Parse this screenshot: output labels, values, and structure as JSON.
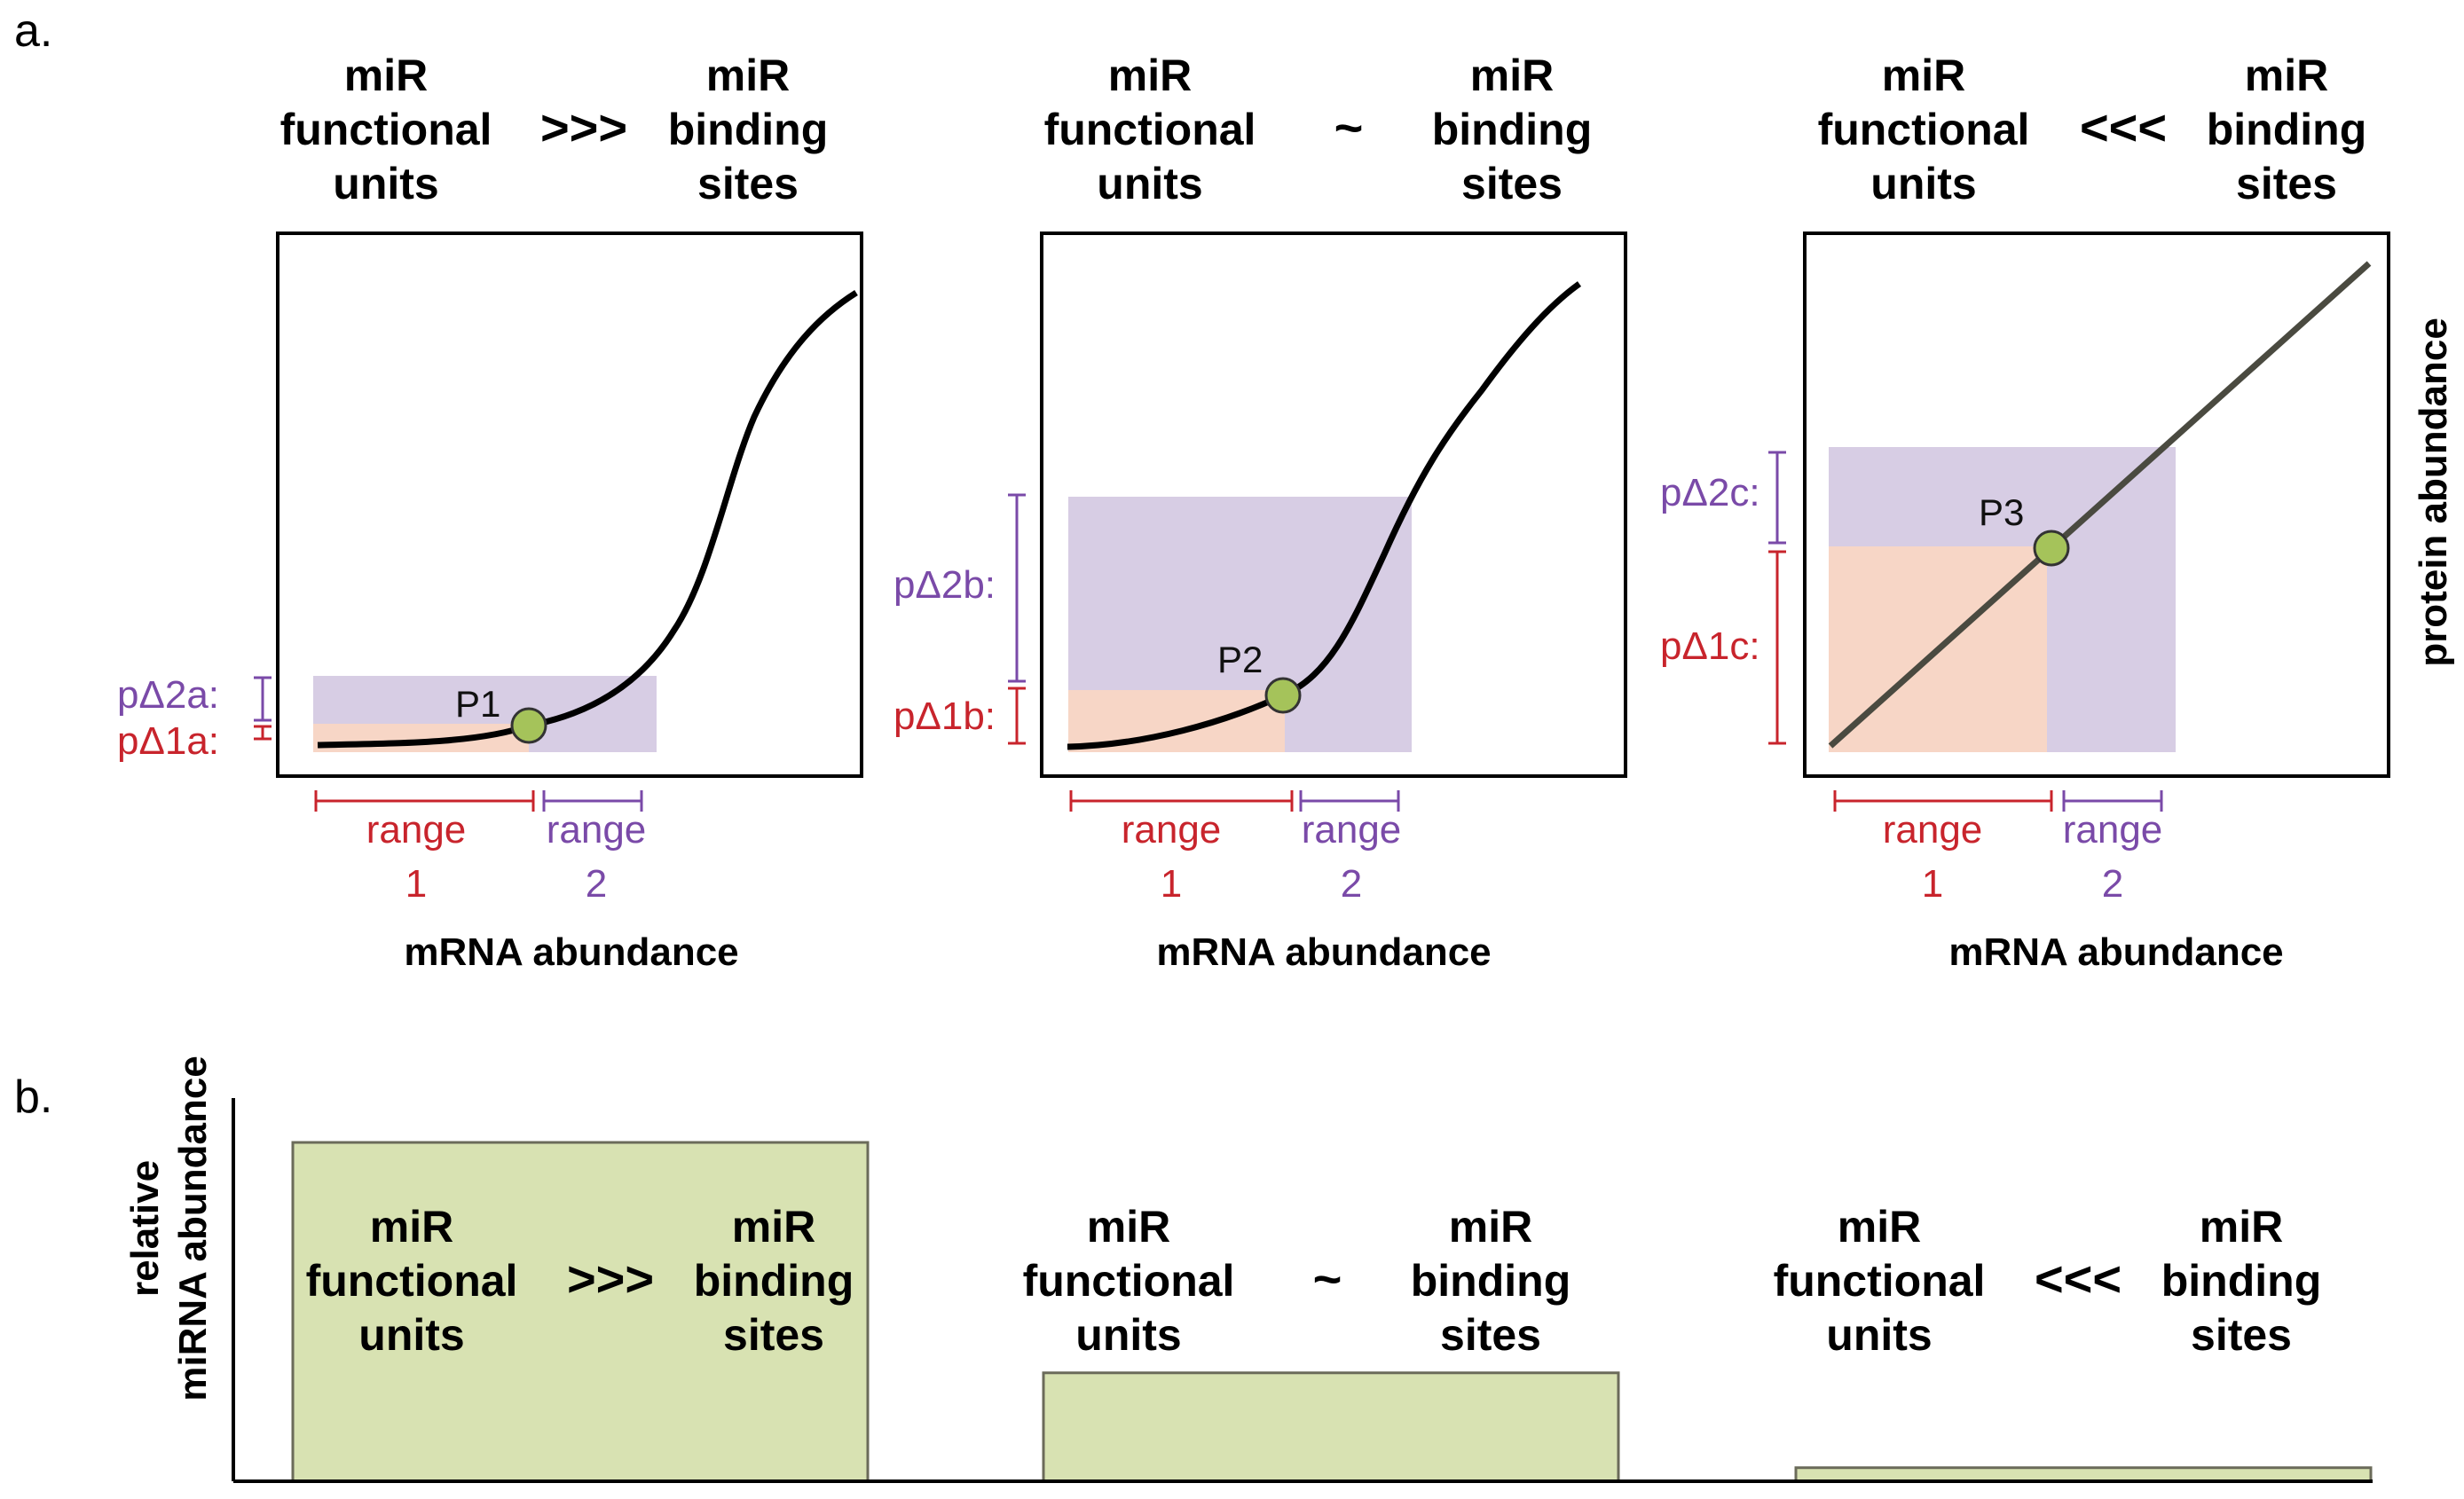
{
  "panel_a": {
    "label": "a.",
    "y_axis_label": "protein abundance",
    "x_axis_label": "mRNA abundance",
    "conditions": [
      {
        "left_lines": [
          "miR",
          "functional",
          "units"
        ],
        "symbol": ">>>",
        "right_lines": [
          "miR",
          "binding",
          "sites"
        ],
        "point": "P1",
        "pdelta1": "pΔ1a:",
        "pdelta2": "pΔ2a:",
        "range1": [
          "range",
          "1"
        ],
        "range2": [
          "range",
          "2"
        ],
        "x_label": "mRNA abundance"
      },
      {
        "left_lines": [
          "miR",
          "functional",
          "units"
        ],
        "symbol": "~",
        "right_lines": [
          "miR",
          "binding",
          "sites"
        ],
        "point": "P2",
        "pdelta1": "pΔ1b:",
        "pdelta2": "pΔ2b:",
        "range1": [
          "range",
          "1"
        ],
        "range2": [
          "range",
          "2"
        ],
        "x_label": "mRNA abundance"
      },
      {
        "left_lines": [
          "miR",
          "functional",
          "units"
        ],
        "symbol": "<<<",
        "right_lines": [
          "miR",
          "binding",
          "sites"
        ],
        "point": "P3",
        "pdelta1": "pΔ1c:",
        "pdelta2": "pΔ2c:",
        "range1": [
          "range",
          "1"
        ],
        "range2": [
          "range",
          "2"
        ],
        "x_label": "mRNA abundance"
      }
    ]
  },
  "panel_b": {
    "label": "b.",
    "y_axis_label_lines": [
      "relative",
      "miRNA abundance"
    ],
    "bars": [
      {
        "relative_height": 1.0,
        "left_lines": [
          "miR",
          "functional",
          "units"
        ],
        "symbol": ">>>",
        "right_lines": [
          "miR",
          "binding",
          "sites"
        ]
      },
      {
        "relative_height": 0.32,
        "left_lines": [
          "miR",
          "functional",
          "units"
        ],
        "symbol": "~",
        "right_lines": [
          "miR",
          "binding",
          "sites"
        ]
      },
      {
        "relative_height": 0.04,
        "left_lines": [
          "miR",
          "functional",
          "units"
        ],
        "symbol": "<<<",
        "right_lines": [
          "miR",
          "binding",
          "sites"
        ]
      }
    ]
  },
  "colors": {
    "red": "#c8242c",
    "purple": "#7a4aa8",
    "shade_purple": "#d7cde4",
    "shade_peach": "#f7d6c6",
    "point_fill": "#a5c35a",
    "bar_fill": "#d8e2b2",
    "line_dark": "#4a4a40"
  }
}
